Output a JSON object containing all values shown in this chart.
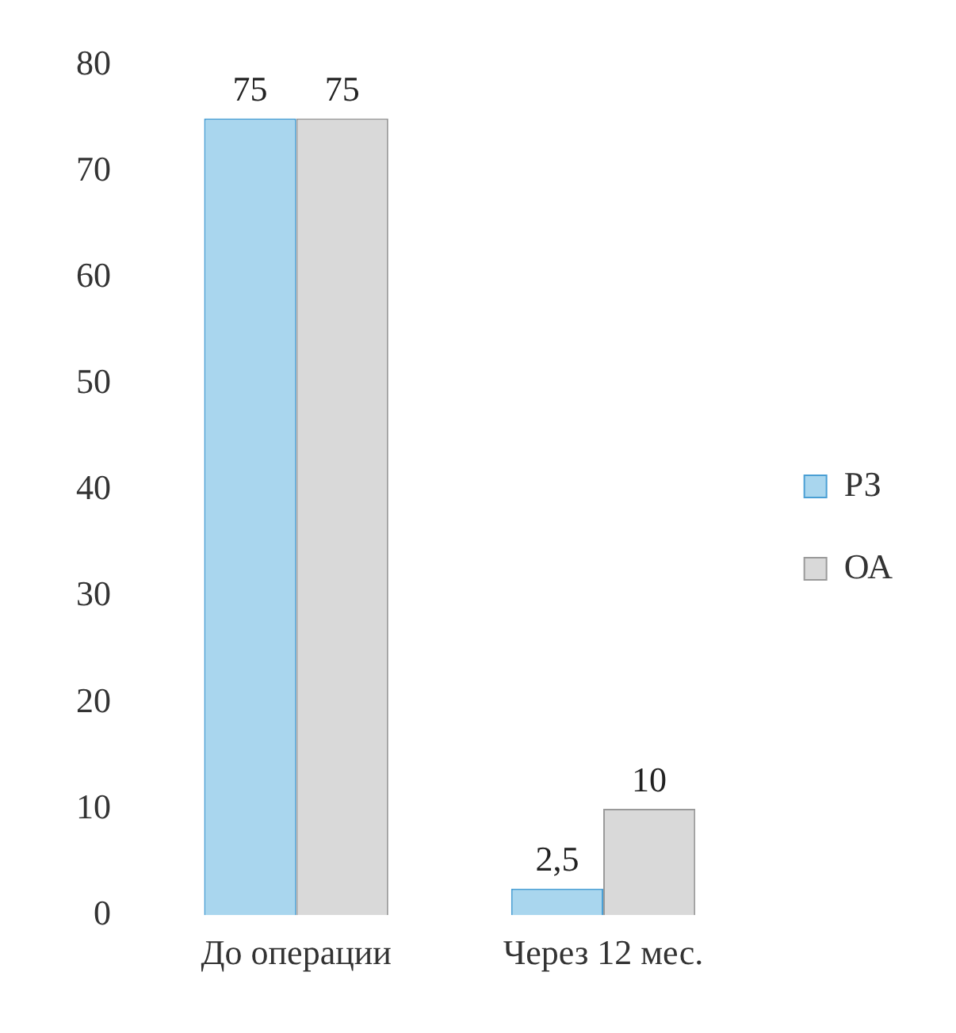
{
  "chart_data": {
    "type": "bar",
    "categories": [
      "До операции",
      "Через 12 мес."
    ],
    "series": [
      {
        "name": "РЗ",
        "color": "#a9d6ee",
        "values": [
          75,
          2.5
        ],
        "value_labels": [
          "75",
          "2,5"
        ]
      },
      {
        "name": "ОА",
        "color": "#d9d9d9",
        "values": [
          75,
          10
        ],
        "value_labels": [
          "75",
          "10"
        ]
      }
    ],
    "ylim": [
      0,
      80
    ],
    "yticks": [
      0,
      10,
      20,
      30,
      40,
      50,
      60,
      70,
      80
    ],
    "grid": false,
    "legend": "right"
  }
}
